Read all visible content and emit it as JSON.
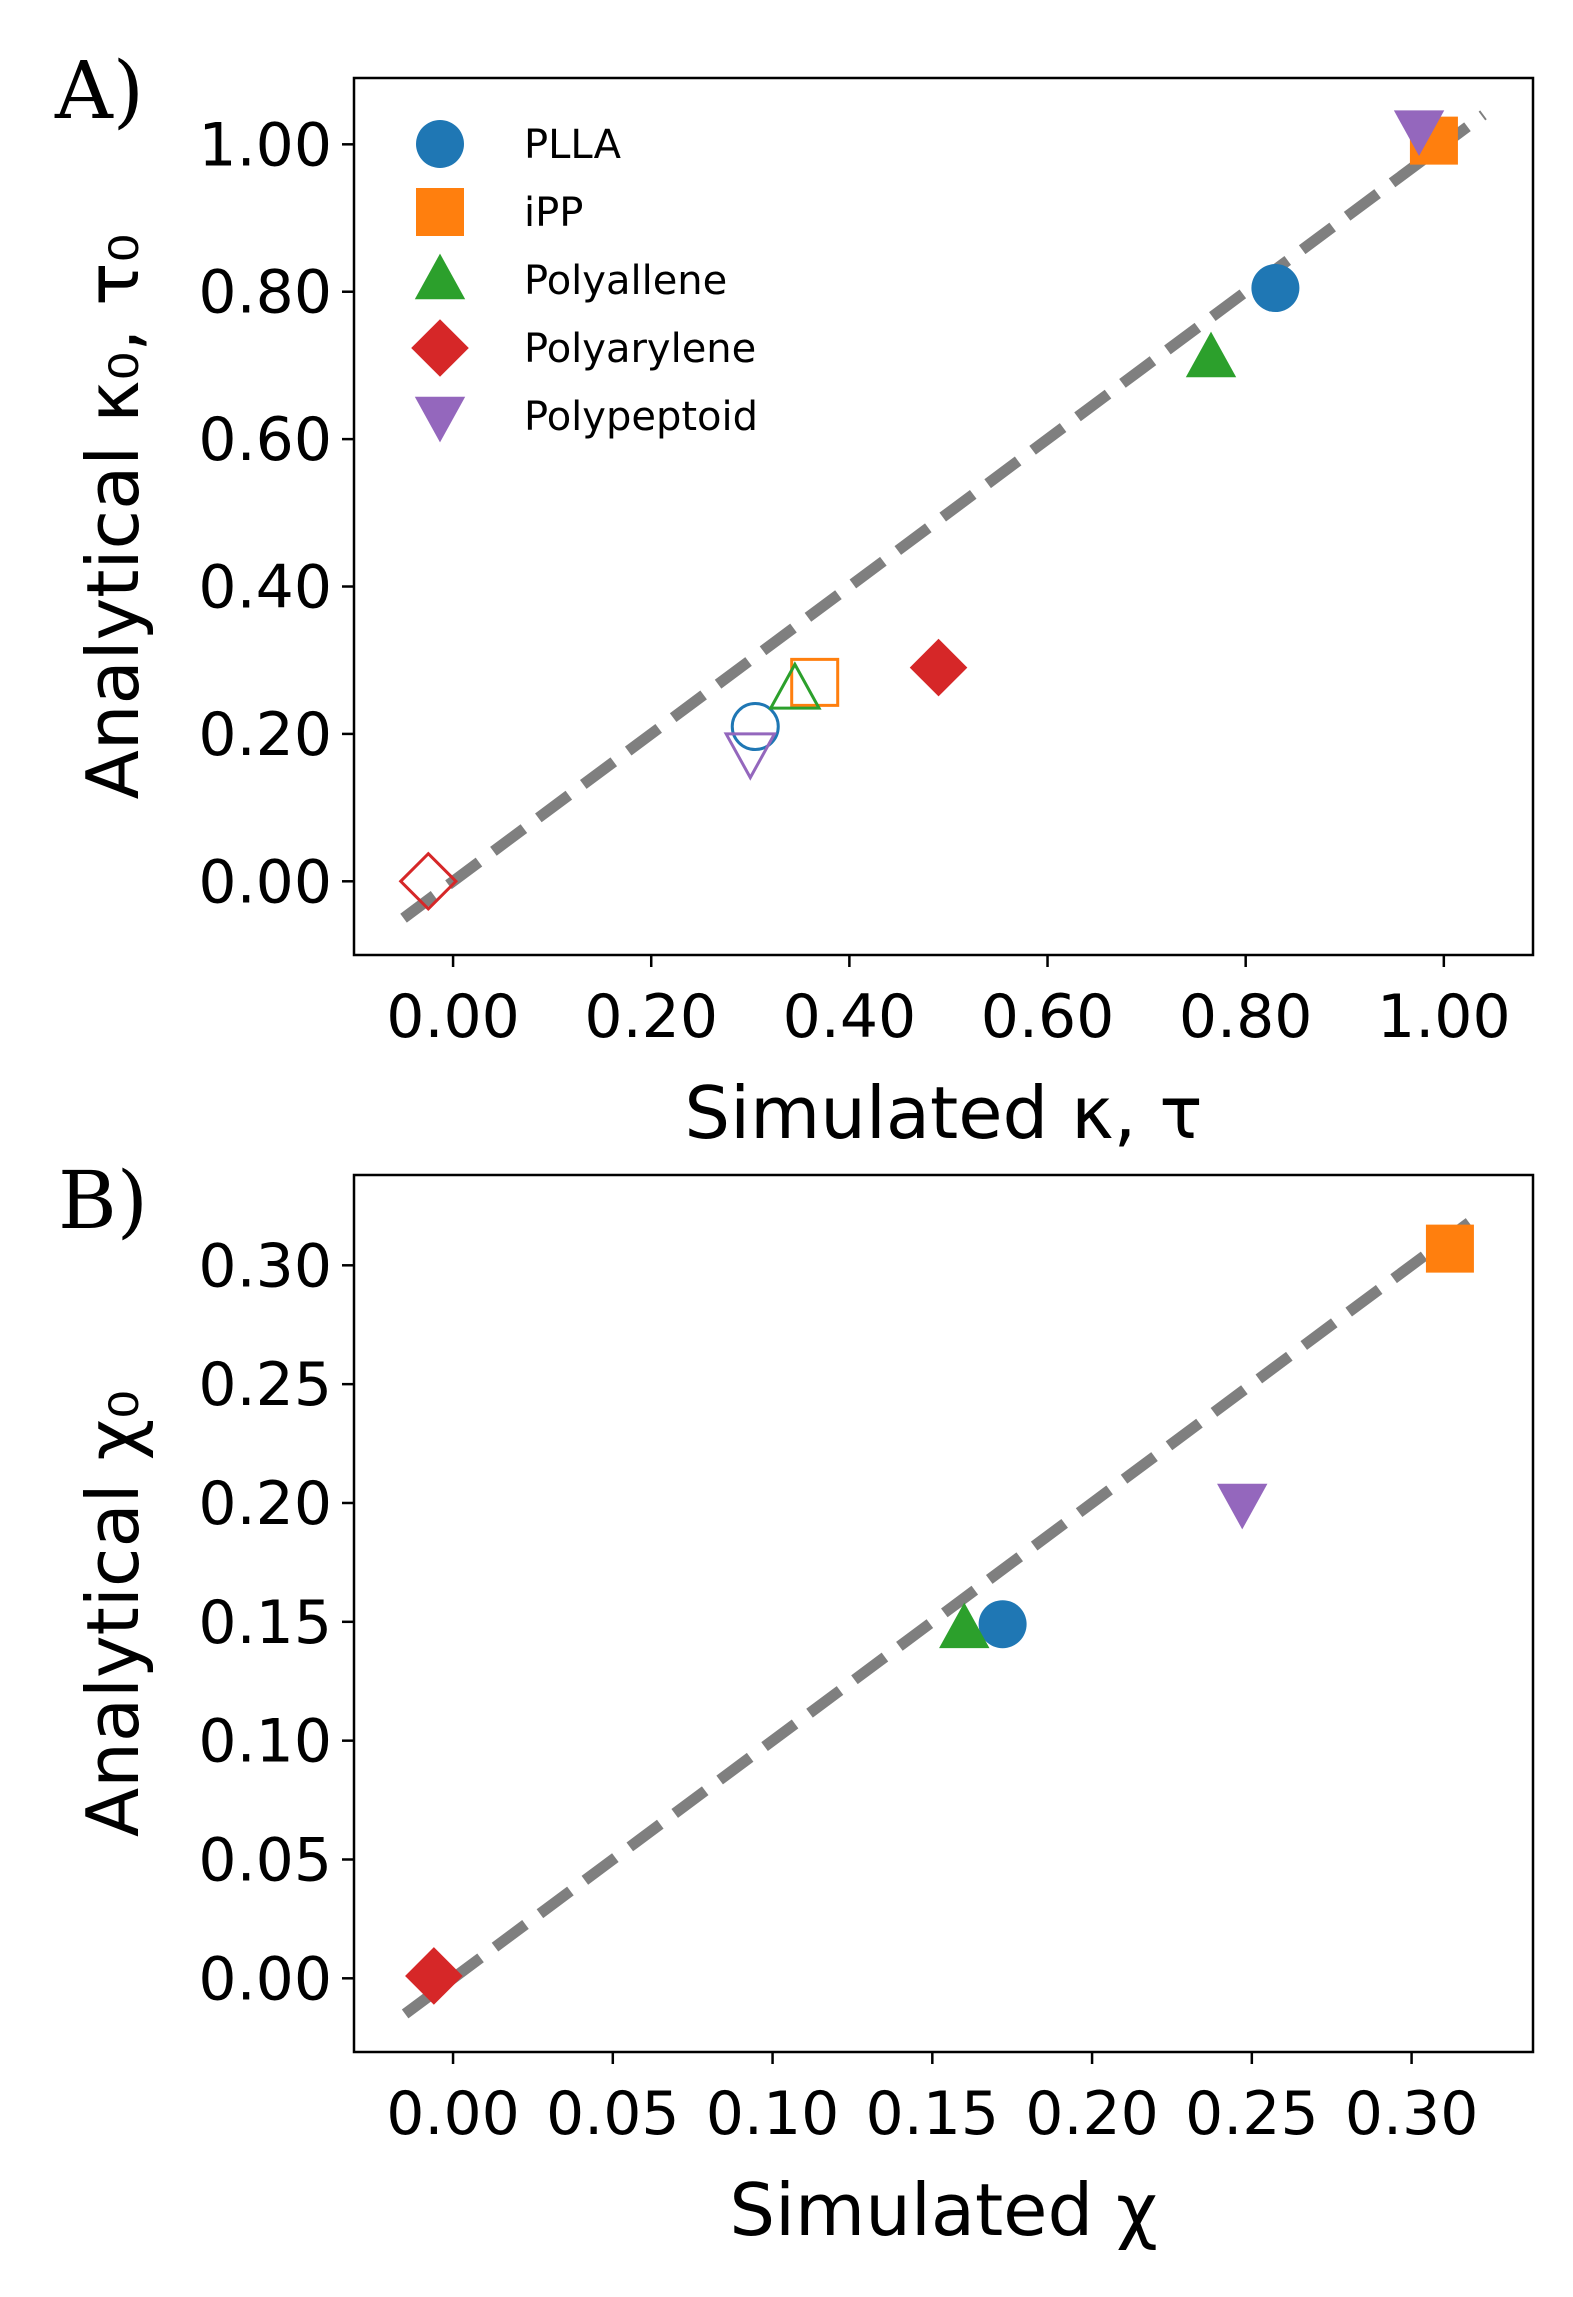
{
  "colors": {
    "PLLA": "#1f77b4",
    "iPP": "#ff7f0e",
    "Polyallene": "#2ca02c",
    "Polyarylene": "#d62728",
    "Polypeptoid": "#9467bd",
    "diagonal": "#7f7f7f"
  },
  "chart_data": [
    {
      "type": "scatter",
      "panel_label": "A)",
      "xlabel": "Simulated κ, τ",
      "ylabel": "Analytical κ₀, τ₀",
      "xlim": [
        -0.1,
        1.09
      ],
      "ylim": [
        -0.1,
        1.09
      ],
      "xticks": [
        0.0,
        0.2,
        0.4,
        0.6,
        0.8,
        1.0
      ],
      "yticks": [
        0.0,
        0.2,
        0.4,
        0.6,
        0.8,
        1.0
      ],
      "tick_labels": [
        "0.00",
        "0.20",
        "0.40",
        "0.60",
        "0.80",
        "1.00"
      ],
      "diagonal": [
        -0.05,
        1.04
      ],
      "legend_position": "top-left",
      "legend": [
        {
          "name": "PLLA",
          "marker": "circle"
        },
        {
          "name": "iPP",
          "marker": "square"
        },
        {
          "name": "Polyallene",
          "marker": "triangle-up"
        },
        {
          "name": "Polyarylene",
          "marker": "diamond"
        },
        {
          "name": "Polypeptoid",
          "marker": "triangle-down"
        }
      ],
      "series": [
        {
          "name": "PLLA",
          "marker": "circle",
          "points": [
            {
              "x": 0.83,
              "y": 0.805,
              "filled": true
            },
            {
              "x": 0.305,
              "y": 0.21,
              "filled": false
            }
          ]
        },
        {
          "name": "iPP",
          "marker": "square",
          "points": [
            {
              "x": 0.99,
              "y": 1.005,
              "filled": true
            },
            {
              "x": 0.365,
              "y": 0.27,
              "filled": false
            }
          ]
        },
        {
          "name": "Polyallene",
          "marker": "triangle-up",
          "points": [
            {
              "x": 0.765,
              "y": 0.71,
              "filled": true
            },
            {
              "x": 0.345,
              "y": 0.26,
              "filled": false
            }
          ]
        },
        {
          "name": "Polyarylene",
          "marker": "diamond",
          "points": [
            {
              "x": 0.49,
              "y": 0.29,
              "filled": true
            },
            {
              "x": -0.025,
              "y": 0.0,
              "filled": false
            }
          ]
        },
        {
          "name": "Polypeptoid",
          "marker": "triangle-down",
          "points": [
            {
              "x": 0.975,
              "y": 1.02,
              "filled": true
            },
            {
              "x": 0.3,
              "y": 0.175,
              "filled": false
            }
          ]
        }
      ]
    },
    {
      "type": "scatter",
      "panel_label": "B)",
      "xlabel": "Simulated χ",
      "ylabel": "Analytical χ₀",
      "xlim": [
        -0.031,
        0.338
      ],
      "ylim": [
        -0.031,
        0.338
      ],
      "xticks": [
        0.0,
        0.05,
        0.1,
        0.15,
        0.2,
        0.25,
        0.3
      ],
      "yticks": [
        0.0,
        0.05,
        0.1,
        0.15,
        0.2,
        0.25,
        0.3
      ],
      "tick_labels": [
        "0.00",
        "0.05",
        "0.10",
        "0.15",
        "0.20",
        "0.25",
        "0.30"
      ],
      "diagonal": [
        -0.015,
        0.322
      ],
      "series": [
        {
          "name": "PLLA",
          "marker": "circle",
          "points": [
            {
              "x": 0.172,
              "y": 0.149,
              "filled": true
            }
          ]
        },
        {
          "name": "iPP",
          "marker": "square",
          "points": [
            {
              "x": 0.312,
              "y": 0.307,
              "filled": true
            }
          ]
        },
        {
          "name": "Polyallene",
          "marker": "triangle-up",
          "points": [
            {
              "x": 0.16,
              "y": 0.147,
              "filled": true
            }
          ]
        },
        {
          "name": "Polyarylene",
          "marker": "diamond",
          "points": [
            {
              "x": -0.006,
              "y": 0.001,
              "filled": true
            }
          ]
        },
        {
          "name": "Polypeptoid",
          "marker": "triangle-down",
          "points": [
            {
              "x": 0.247,
              "y": 0.2,
              "filled": true
            }
          ]
        }
      ]
    }
  ]
}
